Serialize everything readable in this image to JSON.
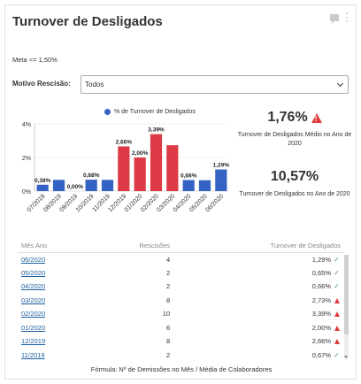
{
  "widget": {
    "title": "Turnover de Desligados",
    "icons": [
      "comment-icon",
      "kebab-icon"
    ]
  },
  "meta_text": "Meta <= 1,50%",
  "filter": {
    "label": "Motivo Rescisão:",
    "value": "Todos"
  },
  "kpis": [
    {
      "value": "1,76%",
      "label": "Turnover de Desligados Médio no Ano de 2020",
      "warning": true
    },
    {
      "value": "10,57%",
      "label": "Turnover de Desligados no Ano de 2020",
      "warning": false
    }
  ],
  "colors": {
    "blue": "#3563c3",
    "red": "#dc3b45",
    "link": "#1b5f9e",
    "warning": "#e0393e",
    "ok": "#3ca34a"
  },
  "chart_data": {
    "type": "bar",
    "legend": "% de Turnover de Desligados",
    "legend_position": "top",
    "categories": [
      "07/2019",
      "08/2019",
      "09/2019",
      "10/2019",
      "11/2019",
      "12/2019",
      "01/2020",
      "02/2020",
      "03/2020",
      "04/2020",
      "05/2020",
      "06/2020"
    ],
    "values": [
      0.38,
      0.67,
      0.0,
      0.68,
      0.67,
      2.66,
      2.0,
      3.39,
      2.73,
      0.66,
      0.65,
      1.29
    ],
    "data_labels": [
      "0,38%",
      "",
      "0,00%",
      "0,68%",
      "",
      "2,66%",
      "2,00%",
      "3,39%",
      "",
      "0,66%",
      "",
      "1,29%"
    ],
    "bar_colors": [
      "blue",
      "blue",
      "blue",
      "blue",
      "blue",
      "red",
      "red",
      "red",
      "red",
      "blue",
      "blue",
      "blue"
    ],
    "yticks": [
      "0%",
      "2%",
      "4%"
    ],
    "ylim": [
      0,
      4
    ],
    "grid": true
  },
  "table": {
    "headers": [
      "Mês Ano",
      "Rescisões",
      "Turnover de Desligados"
    ],
    "rows": [
      {
        "month": "06/2020",
        "count": "4",
        "pct": "1,29%",
        "status": "ok"
      },
      {
        "month": "05/2020",
        "count": "2",
        "pct": "0,65%",
        "status": "ok"
      },
      {
        "month": "04/2020",
        "count": "2",
        "pct": "0,66%",
        "status": "ok"
      },
      {
        "month": "03/2020",
        "count": "8",
        "pct": "2,73%",
        "status": "warn"
      },
      {
        "month": "02/2020",
        "count": "10",
        "pct": "3,39%",
        "status": "warn"
      },
      {
        "month": "01/2020",
        "count": "6",
        "pct": "2,00%",
        "status": "warn"
      },
      {
        "month": "12/2019",
        "count": "8",
        "pct": "2,66%",
        "status": "warn"
      },
      {
        "month": "11/2019",
        "count": "2",
        "pct": "0,67%",
        "status": "ok"
      }
    ]
  },
  "footer": "Fórmula: Nº de Demissões no Mês / Média de Colaboradores"
}
